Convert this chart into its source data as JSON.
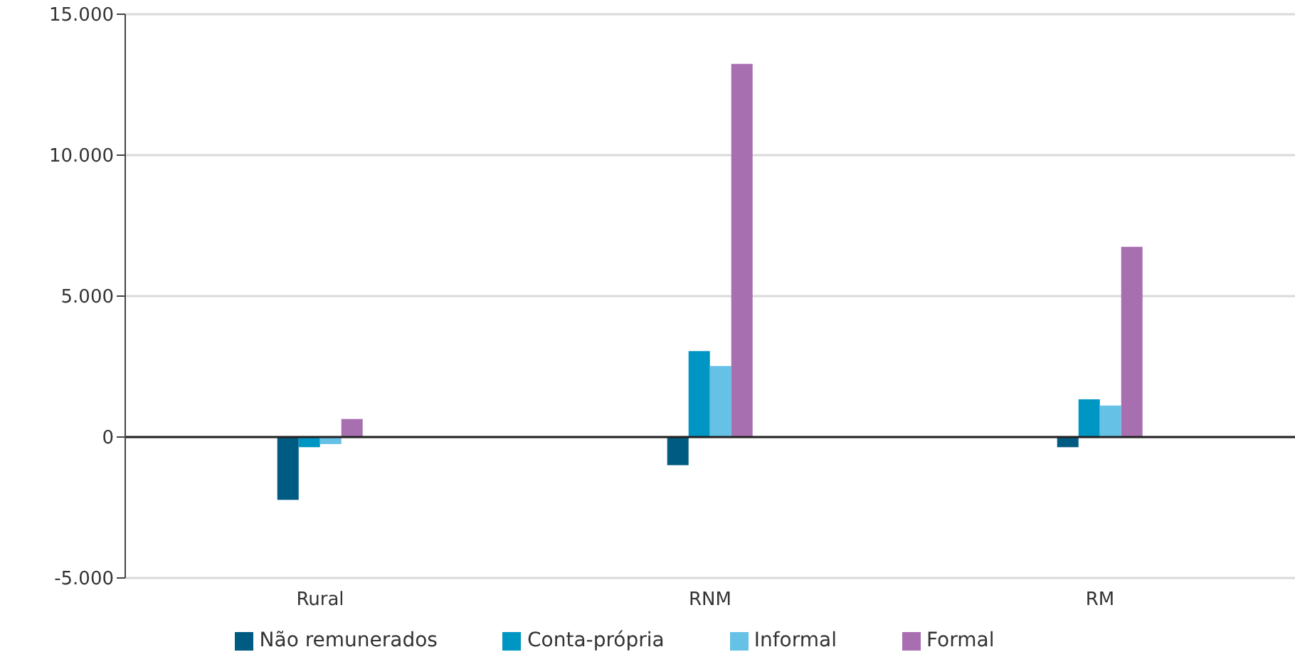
{
  "chart_data": {
    "type": "bar",
    "categories": [
      "Rural",
      "RNM",
      "RM"
    ],
    "series": [
      {
        "name": "Não remunerados",
        "color": "#005b82",
        "values": [
          -2230,
          -1000,
          -360
        ]
      },
      {
        "name": "Conta-própria",
        "color": "#0096c4",
        "values": [
          -360,
          3050,
          1340
        ]
      },
      {
        "name": "Informal",
        "color": "#66c1e6",
        "values": [
          -250,
          2520,
          1120
        ]
      },
      {
        "name": "Formal",
        "color": "#a86fb0",
        "values": [
          640,
          13240,
          6750
        ]
      }
    ],
    "ylim": [
      -5000,
      15000
    ],
    "yticks": [
      {
        "value": -5000,
        "label": "-5.000"
      },
      {
        "value": 0,
        "label": "0"
      },
      {
        "value": 5000,
        "label": "5.000"
      },
      {
        "value": 10000,
        "label": "10.000"
      },
      {
        "value": 15000,
        "label": "15.000"
      }
    ],
    "grid": "y",
    "legend": "bottom"
  }
}
